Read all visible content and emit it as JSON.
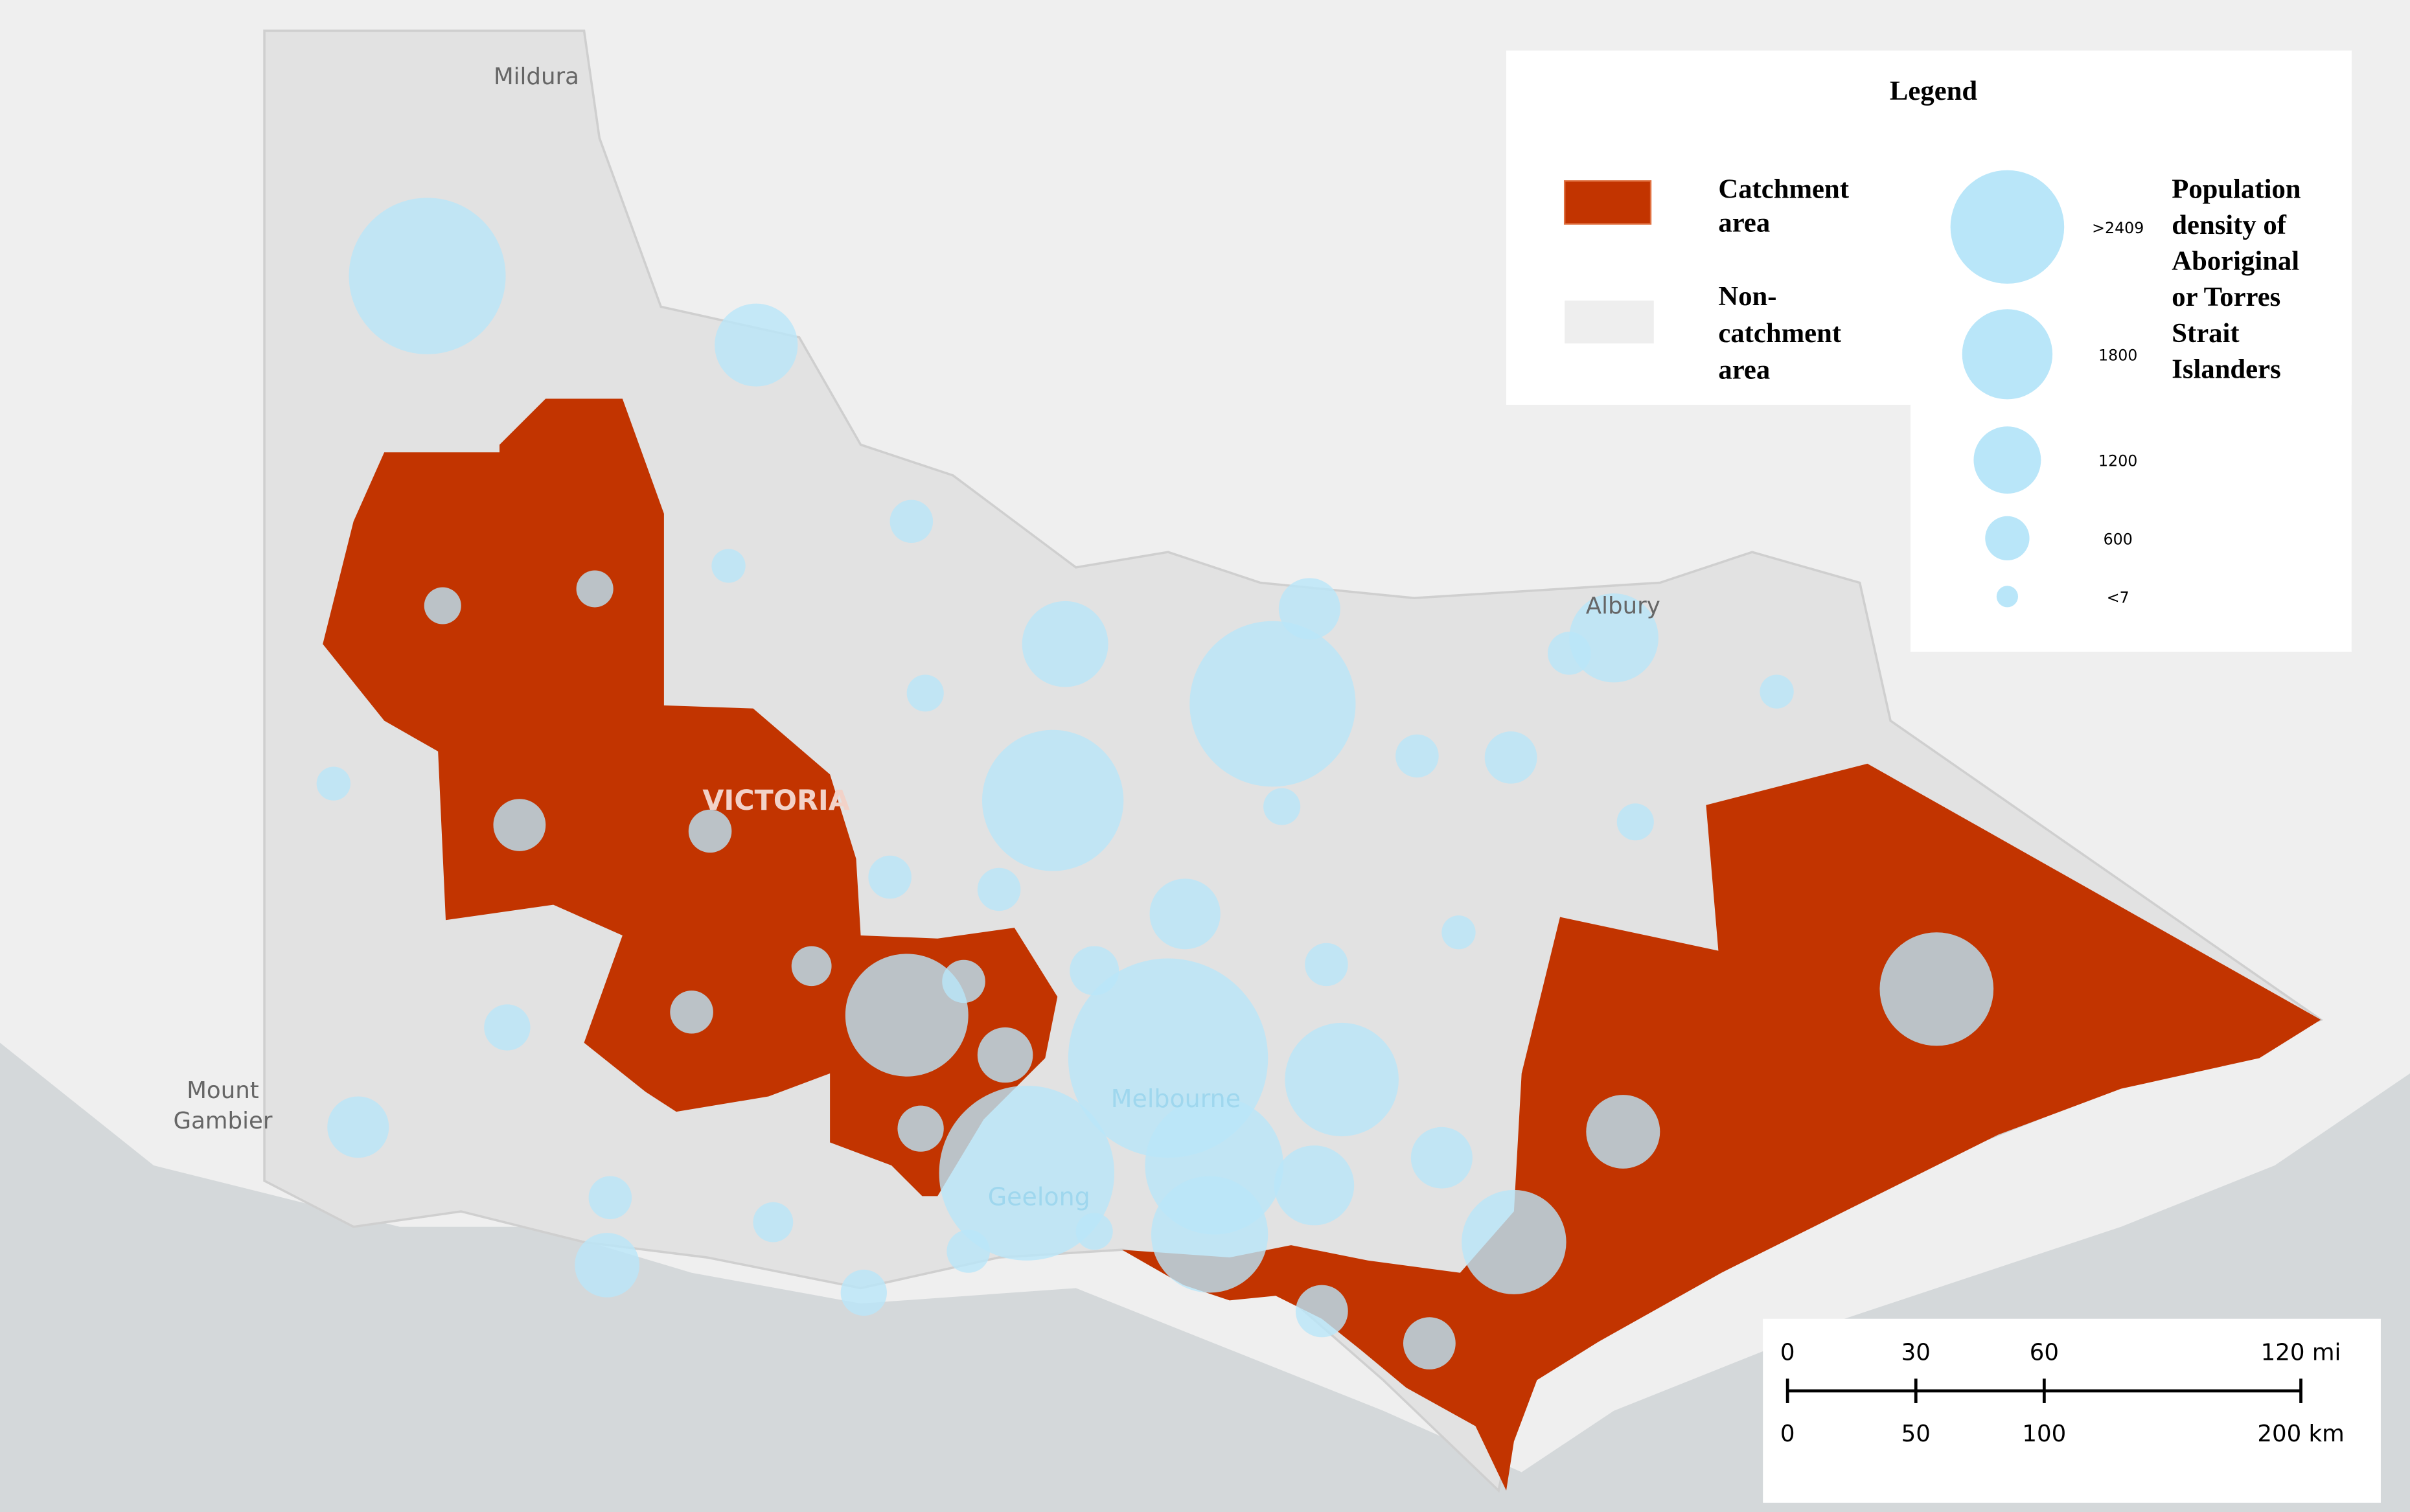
{
  "map": {
    "places": [
      [
        "Mildura"
      ],
      [
        "Mount",
        "Gambier"
      ],
      [
        "Albury"
      ],
      [
        "Melbourne"
      ],
      [
        "Geelong"
      ],
      [
        "VICTORIA"
      ]
    ]
  },
  "legend": {
    "title": "Legend",
    "catchment": [
      "Catchment",
      "area"
    ],
    "non_catchment": [
      "Non-",
      "catchment",
      "area"
    ],
    "size_title": [
      "Population",
      "density of",
      "Aboriginal",
      "or Torres",
      "Strait",
      "Islanders"
    ],
    "sizes": [
      {
        "value": 2409,
        "label": ">2409"
      },
      1800,
      1200,
      600,
      {
        "value": 7,
        "label": "<7"
      }
    ]
  },
  "bubbles": [
    3530,
    1610,
    570,
    330,
    410,
    410,
    330,
    810,
    570,
    410,
    1690,
    3130,
    3770,
    1050,
    410,
    570,
    810,
    570,
    1770,
    330,
    410,
    2410,
    330,
    570,
    1290,
    730,
    570,
    570,
    490,
    570,
    650,
    1050,
    570,
    1130,
    490,
    650,
    570,
    2650,
    570,
    890,
    650,
    4010,
    4650,
    3050,
    2490,
    1530,
    2410,
    1050,
    2170,
    1370,
    810,
    810,
    410
  ],
  "scale_bar": {
    "miles": [
      0,
      30,
      60,
      {
        "value": 120,
        "label": "120 mi"
      }
    ],
    "km": [
      0,
      50,
      100,
      {
        "value": 200,
        "label": "200 km"
      }
    ]
  }
}
